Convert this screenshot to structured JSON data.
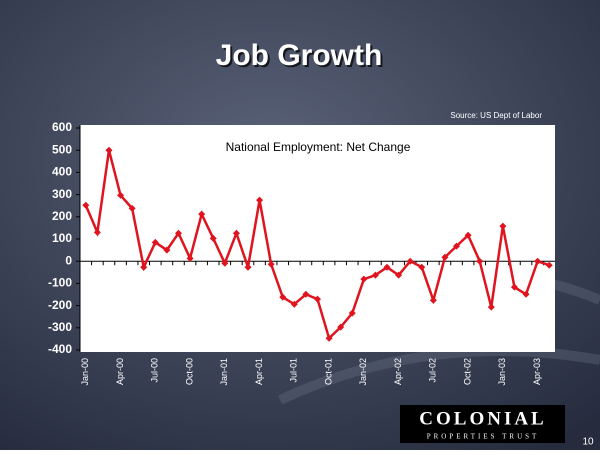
{
  "slide": {
    "title": "Job Growth",
    "source": "Source: US Dept of Labor",
    "logo_name": "COLONIAL",
    "logo_sub": "PROPERTIES TRUST",
    "page_number": "10"
  },
  "chart_data": {
    "type": "line",
    "title": "National Employment: Net Change",
    "categories": [
      "Jan-00",
      null,
      null,
      "Apr-00",
      null,
      null,
      "Jul-00",
      null,
      null,
      "Oct-00",
      null,
      null,
      "Jan-01",
      null,
      null,
      "Apr-01",
      null,
      null,
      "Jul-01",
      null,
      null,
      "Oct-01",
      null,
      null,
      "Jan-02",
      null,
      null,
      "Apr-02",
      null,
      null,
      "Jul-02",
      null,
      null,
      "Oct-02",
      null,
      null,
      "Jan-03",
      null,
      null,
      "Apr-03",
      null
    ],
    "series": [
      {
        "name": "National Employment",
        "color": "#e0141e",
        "values": [
          252,
          130,
          500,
          297,
          238,
          -27,
          85,
          50,
          126,
          13,
          212,
          103,
          -9,
          126,
          -27,
          275,
          -14,
          -162,
          -194,
          -149,
          -171,
          -347,
          -297,
          -234,
          -81,
          -63,
          -27,
          -63,
          0,
          -27,
          -176,
          18,
          68,
          117,
          0,
          -207,
          158,
          -117,
          -149,
          0,
          -18
        ]
      }
    ],
    "ylim": [
      -400,
      600
    ],
    "yticks": [
      -400,
      -300,
      -200,
      -100,
      0,
      100,
      200,
      300,
      400,
      500,
      600
    ],
    "grid": false
  }
}
